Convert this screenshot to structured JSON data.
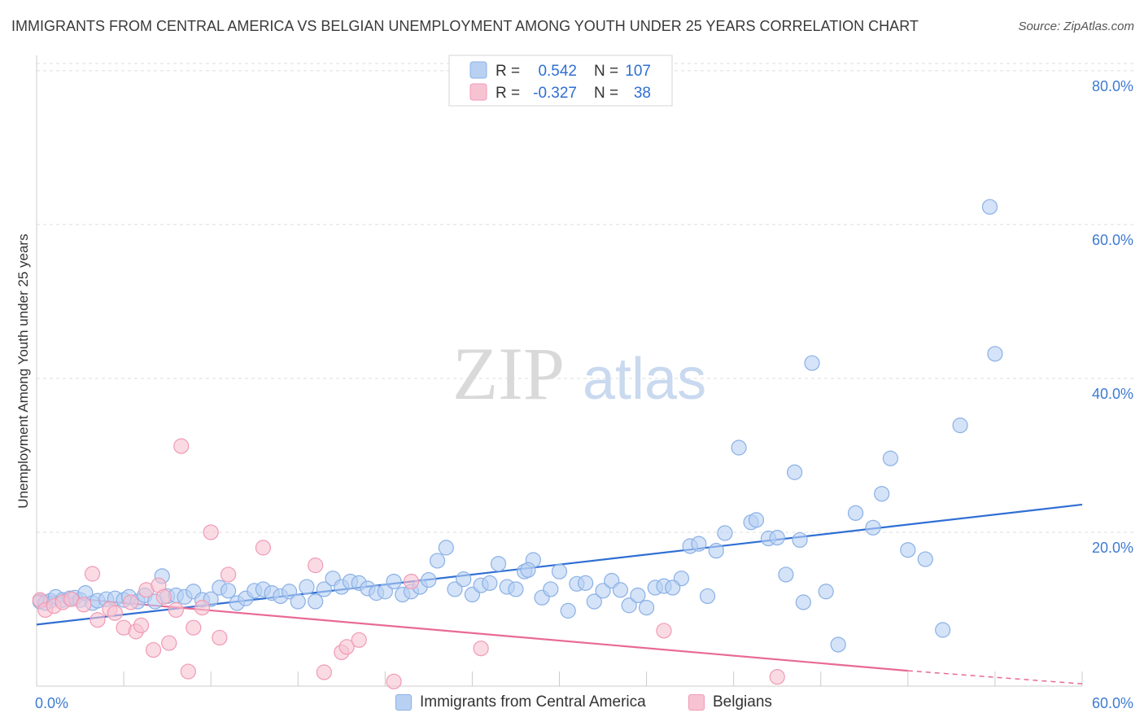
{
  "title": "IMMIGRANTS FROM CENTRAL AMERICA VS BELGIAN UNEMPLOYMENT AMONG YOUTH UNDER 25 YEARS CORRELATION CHART",
  "source": "Source: ZipAtlas.com",
  "watermark": {
    "zip": "ZIP",
    "atlas": "atlas"
  },
  "colors": {
    "blue_fill": "#b8d1f3",
    "blue_stroke": "#8ab0e6",
    "blue_line": "#2f6fd3",
    "pink_fill": "#f7c3d2",
    "pink_stroke": "#f09ab5",
    "pink_line": "#e86a96",
    "tick_text": "#3d7bd1"
  },
  "legend_box": {
    "rows": [
      {
        "r_label": "R =",
        "r_value": "0.542",
        "n_label": "N =",
        "n_value": "107"
      },
      {
        "r_label": "R =",
        "r_value": "-0.327",
        "n_label": "N =",
        "n_value": "38"
      }
    ]
  },
  "bottom_legend": [
    "Immigrants from Central America",
    "Belgians"
  ],
  "chart_data": {
    "type": "scatter",
    "title": "IMMIGRANTS FROM CENTRAL AMERICA VS BELGIAN UNEMPLOYMENT AMONG YOUTH UNDER 25 YEARS CORRELATION CHART",
    "xlabel": "",
    "ylabel": "Unemployment Among Youth under 25 years",
    "xlim": [
      0,
      60
    ],
    "ylim": [
      0,
      82
    ],
    "x_ticks": [
      "0.0%",
      "60.0%"
    ],
    "y_ticks": [
      {
        "value": 20,
        "label": "20.0%"
      },
      {
        "value": 40,
        "label": "40.0%"
      },
      {
        "value": 60,
        "label": "60.0%"
      },
      {
        "value": 80,
        "label": "80.0%"
      }
    ],
    "grid": "horizontal dashed",
    "series": [
      {
        "name": "Immigrants from Central America",
        "R": 0.542,
        "N": 107,
        "trend": {
          "x": [
            0,
            60
          ],
          "y": [
            8.0,
            23.6
          ]
        },
        "points": [
          [
            0.2,
            11.0
          ],
          [
            0.5,
            10.8
          ],
          [
            0.8,
            11.1
          ],
          [
            1.1,
            11.6
          ],
          [
            1.5,
            11.2
          ],
          [
            1.9,
            11.4
          ],
          [
            2.2,
            11.5
          ],
          [
            2.5,
            11.2
          ],
          [
            2.8,
            12.1
          ],
          [
            3.2,
            10.8
          ],
          [
            3.5,
            11.1
          ],
          [
            4.0,
            11.3
          ],
          [
            4.5,
            11.4
          ],
          [
            5.0,
            11.2
          ],
          [
            5.3,
            11.6
          ],
          [
            5.8,
            11.0
          ],
          [
            6.2,
            11.8
          ],
          [
            6.8,
            11.0
          ],
          [
            7.2,
            14.3
          ],
          [
            7.5,
            11.7
          ],
          [
            8.0,
            11.8
          ],
          [
            8.5,
            11.6
          ],
          [
            9.0,
            12.3
          ],
          [
            9.5,
            11.2
          ],
          [
            10.0,
            11.3
          ],
          [
            10.5,
            12.8
          ],
          [
            11.0,
            12.4
          ],
          [
            11.5,
            10.8
          ],
          [
            12.0,
            11.4
          ],
          [
            12.5,
            12.4
          ],
          [
            13.0,
            12.6
          ],
          [
            13.5,
            12.1
          ],
          [
            14.0,
            11.7
          ],
          [
            14.5,
            12.3
          ],
          [
            15.0,
            11.0
          ],
          [
            15.5,
            12.9
          ],
          [
            16.0,
            11.0
          ],
          [
            16.5,
            12.6
          ],
          [
            17.0,
            14.0
          ],
          [
            17.5,
            12.9
          ],
          [
            18.0,
            13.6
          ],
          [
            18.5,
            13.4
          ],
          [
            19.0,
            12.7
          ],
          [
            19.5,
            12.1
          ],
          [
            20.0,
            12.3
          ],
          [
            20.5,
            13.6
          ],
          [
            21.0,
            11.9
          ],
          [
            21.5,
            12.3
          ],
          [
            22.0,
            12.9
          ],
          [
            22.5,
            13.8
          ],
          [
            23.0,
            16.3
          ],
          [
            23.5,
            18.0
          ],
          [
            24.0,
            12.6
          ],
          [
            24.5,
            13.9
          ],
          [
            25.0,
            11.9
          ],
          [
            25.5,
            13.1
          ],
          [
            26.0,
            13.4
          ],
          [
            26.5,
            15.9
          ],
          [
            27.0,
            12.9
          ],
          [
            27.5,
            12.6
          ],
          [
            28.0,
            14.9
          ],
          [
            28.5,
            16.4
          ],
          [
            29.0,
            11.5
          ],
          [
            29.5,
            12.6
          ],
          [
            30.0,
            14.9
          ],
          [
            30.5,
            9.8
          ],
          [
            31.0,
            13.3
          ],
          [
            31.5,
            13.4
          ],
          [
            32.0,
            11.0
          ],
          [
            32.5,
            12.4
          ],
          [
            33.0,
            13.7
          ],
          [
            33.5,
            12.5
          ],
          [
            34.0,
            10.5
          ],
          [
            34.5,
            11.8
          ],
          [
            35.0,
            10.2
          ],
          [
            35.5,
            12.8
          ],
          [
            36.0,
            13.0
          ],
          [
            37.0,
            14.0
          ],
          [
            37.5,
            18.2
          ],
          [
            38.0,
            18.5
          ],
          [
            38.5,
            11.7
          ],
          [
            39.0,
            17.6
          ],
          [
            39.5,
            19.9
          ],
          [
            40.3,
            31.0
          ],
          [
            41.0,
            21.3
          ],
          [
            41.3,
            21.6
          ],
          [
            42.0,
            19.2
          ],
          [
            42.5,
            19.3
          ],
          [
            43.0,
            14.5
          ],
          [
            43.5,
            27.8
          ],
          [
            44.0,
            10.9
          ],
          [
            44.5,
            42.0
          ],
          [
            45.3,
            12.3
          ],
          [
            46.0,
            5.4
          ],
          [
            47.0,
            22.5
          ],
          [
            48.0,
            20.6
          ],
          [
            48.5,
            25.0
          ],
          [
            49.0,
            29.6
          ],
          [
            50.0,
            17.7
          ],
          [
            51.0,
            16.5
          ],
          [
            52.0,
            7.3
          ],
          [
            53.0,
            33.9
          ],
          [
            54.7,
            62.3
          ],
          [
            55.0,
            43.2
          ],
          [
            36.5,
            12.8
          ],
          [
            43.8,
            19.0
          ],
          [
            28.2,
            15.1
          ]
        ]
      },
      {
        "name": "Belgians",
        "R": -0.327,
        "N": 38,
        "trend": {
          "x": [
            0,
            50
          ],
          "y": [
            11.8,
            2.0
          ]
        },
        "trend_dashed": {
          "x": [
            50,
            60
          ],
          "y": [
            2.0,
            0.3
          ]
        },
        "points": [
          [
            0.2,
            11.2
          ],
          [
            0.5,
            9.9
          ],
          [
            1.0,
            10.4
          ],
          [
            1.5,
            10.9
          ],
          [
            2.0,
            11.3
          ],
          [
            2.7,
            10.6
          ],
          [
            3.2,
            14.6
          ],
          [
            3.5,
            8.6
          ],
          [
            4.2,
            10.0
          ],
          [
            4.5,
            9.5
          ],
          [
            5.0,
            7.6
          ],
          [
            5.4,
            10.9
          ],
          [
            5.7,
            7.1
          ],
          [
            6.0,
            7.9
          ],
          [
            6.3,
            12.5
          ],
          [
            6.7,
            4.7
          ],
          [
            7.0,
            13.1
          ],
          [
            7.3,
            11.6
          ],
          [
            7.6,
            5.6
          ],
          [
            8.0,
            9.9
          ],
          [
            8.3,
            31.2
          ],
          [
            8.7,
            1.9
          ],
          [
            9.0,
            7.6
          ],
          [
            9.5,
            10.2
          ],
          [
            10.0,
            20.0
          ],
          [
            10.5,
            6.3
          ],
          [
            11.0,
            14.5
          ],
          [
            13.0,
            18.0
          ],
          [
            16.0,
            15.7
          ],
          [
            16.5,
            1.8
          ],
          [
            17.5,
            4.4
          ],
          [
            17.8,
            5.1
          ],
          [
            18.5,
            6.0
          ],
          [
            20.5,
            0.6
          ],
          [
            21.5,
            13.6
          ],
          [
            25.5,
            4.9
          ],
          [
            36.0,
            7.2
          ],
          [
            42.5,
            1.2
          ]
        ]
      }
    ]
  }
}
